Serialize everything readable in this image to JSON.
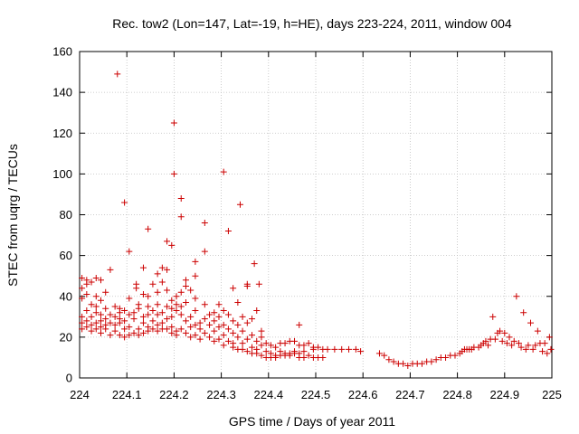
{
  "chart_data": {
    "type": "scatter",
    "title": "Rec. tow2 (Lon=147, Lat=-19, h=HE), days 223-224, 2011, window 004",
    "xlabel": "GPS time / Days of year 2011",
    "ylabel": "STEC from uqrg / TECUs",
    "xlim": [
      224,
      225
    ],
    "ylim": [
      0,
      160
    ],
    "xticks": [
      224,
      224.1,
      224.2,
      224.3,
      224.4,
      224.5,
      224.6,
      224.7,
      224.8,
      224.9,
      225
    ],
    "xtick_labels": [
      "224",
      "224.1",
      "224.2",
      "224.3",
      "224.4",
      "224.5",
      "224.6",
      "224.7",
      "224.8",
      "224.9",
      "225"
    ],
    "yticks": [
      0,
      20,
      40,
      60,
      80,
      100,
      120,
      140,
      160
    ],
    "ytick_labels": [
      "0",
      "20",
      "40",
      "60",
      "80",
      "100",
      "120",
      "140",
      "160"
    ],
    "grid": true,
    "marker": "+",
    "color": "#cc0000",
    "points": [
      [
        224.005,
        49
      ],
      [
        224.005,
        44
      ],
      [
        224.005,
        39
      ],
      [
        224.005,
        30
      ],
      [
        224.005,
        27
      ],
      [
        224.005,
        24
      ],
      [
        224.015,
        48
      ],
      [
        224.015,
        46
      ],
      [
        224.015,
        41
      ],
      [
        224.015,
        33
      ],
      [
        224.015,
        28
      ],
      [
        224.015,
        25
      ],
      [
        224.025,
        47
      ],
      [
        224.025,
        36
      ],
      [
        224.025,
        30
      ],
      [
        224.025,
        26
      ],
      [
        224.025,
        23
      ],
      [
        224.035,
        49
      ],
      [
        224.035,
        40
      ],
      [
        224.035,
        35
      ],
      [
        224.035,
        32
      ],
      [
        224.035,
        27
      ],
      [
        224.035,
        24
      ],
      [
        224.045,
        48
      ],
      [
        224.045,
        38
      ],
      [
        224.045,
        31
      ],
      [
        224.045,
        28
      ],
      [
        224.045,
        25
      ],
      [
        224.045,
        22
      ],
      [
        224.055,
        42
      ],
      [
        224.055,
        34
      ],
      [
        224.055,
        29
      ],
      [
        224.055,
        26
      ],
      [
        224.055,
        24
      ],
      [
        224.065,
        53
      ],
      [
        224.065,
        31
      ],
      [
        224.065,
        27
      ],
      [
        224.065,
        21
      ],
      [
        224.075,
        35
      ],
      [
        224.075,
        30
      ],
      [
        224.075,
        26
      ],
      [
        224.075,
        23
      ],
      [
        224.08,
        149
      ],
      [
        224.085,
        34
      ],
      [
        224.085,
        32
      ],
      [
        224.085,
        29
      ],
      [
        224.085,
        27
      ],
      [
        224.085,
        21
      ],
      [
        224.095,
        86
      ],
      [
        224.095,
        33
      ],
      [
        224.095,
        28
      ],
      [
        224.095,
        24
      ],
      [
        224.095,
        20
      ],
      [
        224.105,
        62
      ],
      [
        224.105,
        39
      ],
      [
        224.105,
        31
      ],
      [
        224.105,
        25
      ],
      [
        224.105,
        21
      ],
      [
        224.115,
        32
      ],
      [
        224.115,
        29
      ],
      [
        224.115,
        22
      ],
      [
        224.12,
        46
      ],
      [
        224.12,
        44
      ],
      [
        224.125,
        36
      ],
      [
        224.125,
        34
      ],
      [
        224.125,
        24
      ],
      [
        224.125,
        21
      ],
      [
        224.135,
        54
      ],
      [
        224.135,
        41
      ],
      [
        224.135,
        30
      ],
      [
        224.135,
        27
      ],
      [
        224.135,
        22
      ],
      [
        224.145,
        73
      ],
      [
        224.145,
        40
      ],
      [
        224.145,
        35
      ],
      [
        224.145,
        31
      ],
      [
        224.145,
        25
      ],
      [
        224.145,
        23
      ],
      [
        224.155,
        46
      ],
      [
        224.155,
        33
      ],
      [
        224.155,
        28
      ],
      [
        224.155,
        24
      ],
      [
        224.165,
        51
      ],
      [
        224.165,
        42
      ],
      [
        224.165,
        36
      ],
      [
        224.165,
        31
      ],
      [
        224.165,
        26
      ],
      [
        224.165,
        23
      ],
      [
        224.175,
        54
      ],
      [
        224.175,
        47
      ],
      [
        224.175,
        32
      ],
      [
        224.175,
        27
      ],
      [
        224.175,
        24
      ],
      [
        224.185,
        53
      ],
      [
        224.185,
        67
      ],
      [
        224.185,
        43
      ],
      [
        224.185,
        35
      ],
      [
        224.185,
        29
      ],
      [
        224.185,
        24
      ],
      [
        224.195,
        65
      ],
      [
        224.195,
        38
      ],
      [
        224.195,
        34
      ],
      [
        224.195,
        30
      ],
      [
        224.195,
        25
      ],
      [
        224.195,
        22
      ],
      [
        224.2,
        125
      ],
      [
        224.2,
        100
      ],
      [
        224.205,
        40
      ],
      [
        224.205,
        36
      ],
      [
        224.205,
        33
      ],
      [
        224.205,
        23
      ],
      [
        224.205,
        21
      ],
      [
        224.215,
        88
      ],
      [
        224.215,
        79
      ],
      [
        224.215,
        42
      ],
      [
        224.215,
        35
      ],
      [
        224.215,
        31
      ],
      [
        224.215,
        24
      ],
      [
        224.225,
        48
      ],
      [
        224.225,
        45
      ],
      [
        224.225,
        37
      ],
      [
        224.225,
        28
      ],
      [
        224.225,
        22
      ],
      [
        224.235,
        43
      ],
      [
        224.235,
        30
      ],
      [
        224.235,
        25
      ],
      [
        224.235,
        20
      ],
      [
        224.245,
        57
      ],
      [
        224.245,
        50
      ],
      [
        224.245,
        39
      ],
      [
        224.245,
        33
      ],
      [
        224.245,
        26
      ],
      [
        224.245,
        21
      ],
      [
        224.255,
        27
      ],
      [
        224.255,
        24
      ],
      [
        224.255,
        19
      ],
      [
        224.265,
        76
      ],
      [
        224.265,
        62
      ],
      [
        224.265,
        36
      ],
      [
        224.265,
        29
      ],
      [
        224.265,
        22
      ],
      [
        224.275,
        31
      ],
      [
        224.275,
        26
      ],
      [
        224.275,
        20
      ],
      [
        224.285,
        32
      ],
      [
        224.285,
        28
      ],
      [
        224.285,
        23
      ],
      [
        224.285,
        18
      ],
      [
        224.295,
        36
      ],
      [
        224.295,
        30
      ],
      [
        224.295,
        25
      ],
      [
        224.295,
        19
      ],
      [
        224.305,
        101
      ],
      [
        224.305,
        33
      ],
      [
        224.305,
        26
      ],
      [
        224.305,
        21
      ],
      [
        224.305,
        16
      ],
      [
        224.315,
        72
      ],
      [
        224.315,
        31
      ],
      [
        224.315,
        24
      ],
      [
        224.315,
        18
      ],
      [
        224.325,
        44
      ],
      [
        224.325,
        28
      ],
      [
        224.325,
        22
      ],
      [
        224.325,
        17
      ],
      [
        224.325,
        15
      ],
      [
        224.335,
        37
      ],
      [
        224.335,
        26
      ],
      [
        224.335,
        20
      ],
      [
        224.335,
        14
      ],
      [
        224.34,
        85
      ],
      [
        224.345,
        30
      ],
      [
        224.345,
        23
      ],
      [
        224.345,
        17
      ],
      [
        224.345,
        14
      ],
      [
        224.355,
        46
      ],
      [
        224.355,
        45
      ],
      [
        224.355,
        27
      ],
      [
        224.355,
        19
      ],
      [
        224.355,
        13
      ],
      [
        224.365,
        29
      ],
      [
        224.365,
        21
      ],
      [
        224.365,
        15
      ],
      [
        224.365,
        12
      ],
      [
        224.37,
        56
      ],
      [
        224.375,
        33
      ],
      [
        224.375,
        18
      ],
      [
        224.375,
        14
      ],
      [
        224.375,
        12
      ],
      [
        224.38,
        46
      ],
      [
        224.385,
        23
      ],
      [
        224.385,
        20
      ],
      [
        224.385,
        16
      ],
      [
        224.385,
        11
      ],
      [
        224.395,
        17
      ],
      [
        224.395,
        13
      ],
      [
        224.395,
        10
      ],
      [
        224.405,
        16
      ],
      [
        224.405,
        12
      ],
      [
        224.405,
        10
      ],
      [
        224.415,
        15
      ],
      [
        224.415,
        11
      ],
      [
        224.415,
        10
      ],
      [
        224.425,
        17
      ],
      [
        224.425,
        13
      ],
      [
        224.425,
        11
      ],
      [
        224.435,
        17
      ],
      [
        224.435,
        12
      ],
      [
        224.435,
        11
      ],
      [
        224.445,
        18
      ],
      [
        224.445,
        12
      ],
      [
        224.445,
        11
      ],
      [
        224.455,
        18
      ],
      [
        224.455,
        13
      ],
      [
        224.455,
        12
      ],
      [
        224.465,
        26
      ],
      [
        224.465,
        16
      ],
      [
        224.465,
        12
      ],
      [
        224.465,
        10
      ],
      [
        224.475,
        16
      ],
      [
        224.475,
        13
      ],
      [
        224.475,
        10
      ],
      [
        224.485,
        17
      ],
      [
        224.485,
        11
      ],
      [
        224.495,
        15
      ],
      [
        224.495,
        14
      ],
      [
        224.495,
        10
      ],
      [
        224.505,
        15
      ],
      [
        224.505,
        10
      ],
      [
        224.515,
        14
      ],
      [
        224.515,
        10
      ],
      [
        224.525,
        14
      ],
      [
        224.54,
        14
      ],
      [
        224.555,
        14
      ],
      [
        224.57,
        14
      ],
      [
        224.585,
        14
      ],
      [
        224.595,
        13
      ],
      [
        224.635,
        12
      ],
      [
        224.645,
        11
      ],
      [
        224.655,
        9
      ],
      [
        224.665,
        8
      ],
      [
        224.675,
        7
      ],
      [
        224.685,
        7
      ],
      [
        224.695,
        6
      ],
      [
        224.705,
        7
      ],
      [
        224.715,
        7
      ],
      [
        224.725,
        7
      ],
      [
        224.735,
        8
      ],
      [
        224.745,
        8
      ],
      [
        224.755,
        9
      ],
      [
        224.765,
        10
      ],
      [
        224.775,
        10
      ],
      [
        224.785,
        11
      ],
      [
        224.795,
        11
      ],
      [
        224.805,
        12
      ],
      [
        224.81,
        13
      ],
      [
        224.815,
        14
      ],
      [
        224.82,
        14
      ],
      [
        224.825,
        14
      ],
      [
        224.83,
        14
      ],
      [
        224.835,
        15
      ],
      [
        224.845,
        15
      ],
      [
        224.85,
        16
      ],
      [
        224.855,
        17
      ],
      [
        224.86,
        18
      ],
      [
        224.865,
        16
      ],
      [
        224.87,
        19
      ],
      [
        224.875,
        30
      ],
      [
        224.88,
        19
      ],
      [
        224.885,
        22
      ],
      [
        224.89,
        23
      ],
      [
        224.895,
        18
      ],
      [
        224.9,
        22
      ],
      [
        224.905,
        17
      ],
      [
        224.91,
        20
      ],
      [
        224.915,
        16
      ],
      [
        224.92,
        18
      ],
      [
        224.925,
        40
      ],
      [
        224.93,
        17
      ],
      [
        224.935,
        15
      ],
      [
        224.94,
        32
      ],
      [
        224.945,
        14
      ],
      [
        224.95,
        16
      ],
      [
        224.955,
        27
      ],
      [
        224.96,
        14
      ],
      [
        224.965,
        16
      ],
      [
        224.97,
        23
      ],
      [
        224.975,
        17
      ],
      [
        224.98,
        13
      ],
      [
        224.985,
        17
      ],
      [
        224.99,
        12
      ],
      [
        224.995,
        20
      ],
      [
        224.998,
        14
      ]
    ]
  }
}
